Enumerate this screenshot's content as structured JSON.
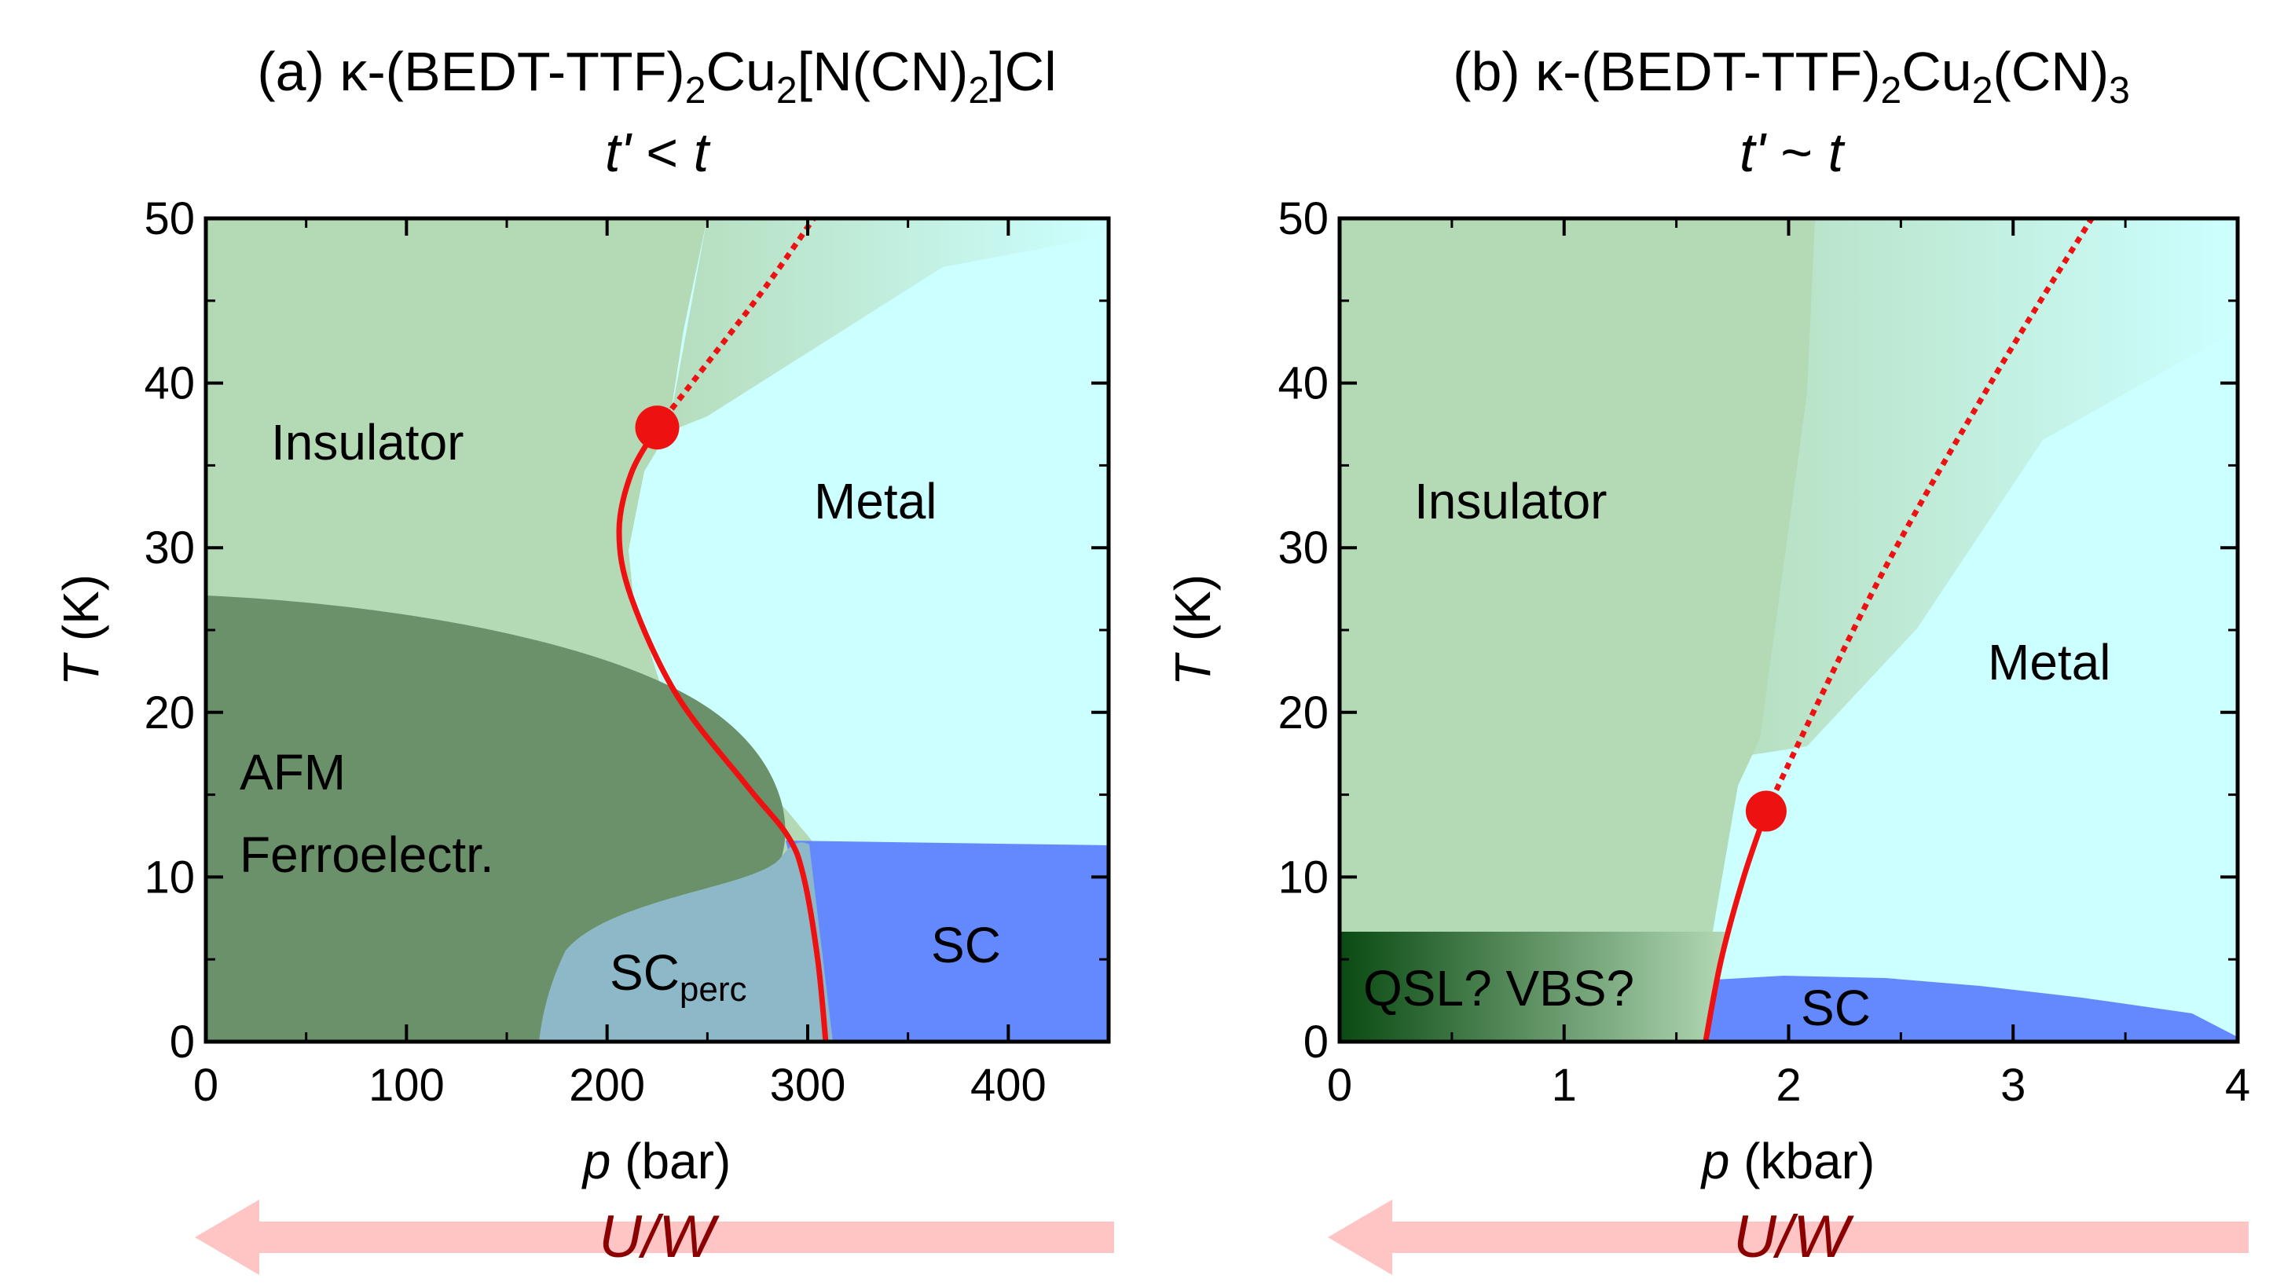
{
  "chart_data": [
    {
      "type": "area",
      "panel": "a",
      "title_prefix": "(a) κ-(BEDT-TTF)",
      "title_sub1": "2",
      "title_mid": "Cu",
      "title_sub2": "2",
      "title_mid2": "[N(CN)",
      "title_sub3": "2",
      "title_end": "]Cl",
      "subtitle_left": "t'",
      "subtitle_op": " < ",
      "subtitle_right": "t",
      "xlabel_var": "p",
      "xlabel_unit": " (bar)",
      "ylabel_var": "T",
      "ylabel_unit": " (K)",
      "xlim": [
        0,
        450
      ],
      "ylim": [
        0,
        50
      ],
      "xticks": [
        0,
        100,
        200,
        300,
        400
      ],
      "yticks": [
        0,
        10,
        20,
        30,
        40,
        50
      ],
      "regions": {
        "insulator": "Insulator",
        "metal": "Metal",
        "afm_line1": "AFM",
        "afm_line2": "Ferroelectr.",
        "sc": "SC",
        "scperc_main": "SC",
        "scperc_sub": "perc"
      },
      "critical_point": [
        225,
        37.3
      ],
      "first_order_line": [
        [
          309,
          0
        ],
        [
          305,
          5
        ],
        [
          298,
          10
        ],
        [
          290,
          12.5
        ],
        [
          270,
          15.5
        ],
        [
          235,
          21
        ],
        [
          212,
          27
        ],
        [
          206,
          31
        ],
        [
          212,
          34.5
        ],
        [
          225,
          37.3
        ]
      ],
      "crossover_line": [
        [
          225,
          37.3
        ],
        [
          255,
          42
        ],
        [
          280,
          46
        ],
        [
          303,
          50
        ]
      ],
      "arrow_label_var": "U/W",
      "colors": {
        "insulator": "#b3d9b5",
        "metal": "#ccffff",
        "afm": "#6a916a",
        "sc": "#6489ff",
        "scperc": "#8cb8c8",
        "line": "#ee1111",
        "arrow": "#ffc4c4"
      }
    },
    {
      "type": "area",
      "panel": "b",
      "title_prefix": "(b) κ-(BEDT-TTF)",
      "title_sub1": "2",
      "title_mid": "Cu",
      "title_sub2": "2",
      "title_mid2": "(CN)",
      "title_sub3": "3",
      "subtitle_left": "t'",
      "subtitle_op": " ~ ",
      "subtitle_right": "t",
      "xlabel_var": "p",
      "xlabel_unit": " (kbar)",
      "ylabel_var": "T",
      "ylabel_unit": " (K)",
      "xlim": [
        0,
        4
      ],
      "ylim": [
        0,
        50
      ],
      "xticks": [
        0,
        1,
        2,
        3,
        4
      ],
      "yticks": [
        0,
        10,
        20,
        30,
        40,
        50
      ],
      "regions": {
        "insulator": "Insulator",
        "metal": "Metal",
        "qsl": "QSL? VBS?",
        "sc": "SC"
      },
      "critical_point": [
        1.9,
        14
      ],
      "first_order_line": [
        [
          1.63,
          0
        ],
        [
          1.7,
          5
        ],
        [
          1.8,
          10
        ],
        [
          1.9,
          14
        ]
      ],
      "crossover_line": [
        [
          1.9,
          14
        ],
        [
          2.4,
          28
        ],
        [
          2.9,
          40
        ],
        [
          3.35,
          50
        ]
      ],
      "arrow_label_var": "U/W",
      "colors": {
        "insulator": "#b3d9b5",
        "metal": "#ccffff",
        "qsl_dark": "#0a4a12",
        "sc": "#6489ff",
        "line": "#ee1111",
        "arrow": "#ffc4c4"
      }
    }
  ]
}
